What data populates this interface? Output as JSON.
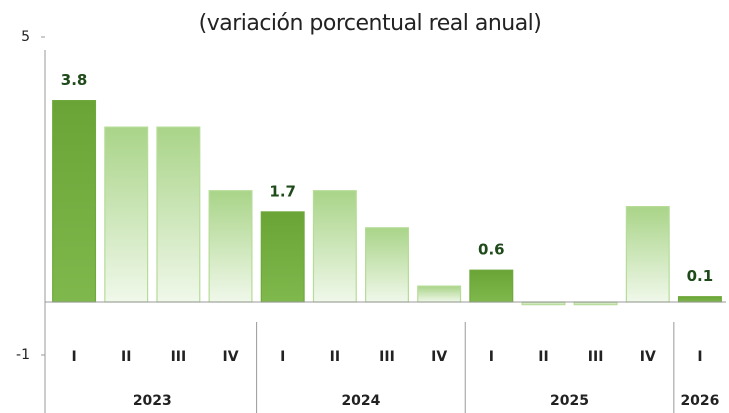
{
  "chart_data": {
    "type": "bar",
    "subtitle": "(variación porcentual real anual)",
    "categories": [
      "I",
      "II",
      "III",
      "IV",
      "I",
      "II",
      "III",
      "IV",
      "I",
      "II",
      "III",
      "IV",
      "I"
    ],
    "groups": [
      {
        "label": "2023",
        "span": 4
      },
      {
        "label": "2024",
        "span": 4
      },
      {
        "label": "2025",
        "span": 4
      },
      {
        "label": "2026",
        "span": 1
      }
    ],
    "values": [
      3.8,
      3.3,
      3.3,
      2.1,
      1.7,
      2.1,
      1.4,
      0.3,
      0.6,
      -0.05,
      -0.05,
      1.8,
      0.1
    ],
    "value_labels": [
      "3.8",
      null,
      null,
      null,
      "1.7",
      null,
      null,
      null,
      "0.6",
      null,
      null,
      null,
      "0.1"
    ],
    "colors": {
      "labelled": "#6fa83c",
      "other": "#b6dc98"
    },
    "ylim": [
      -1,
      5
    ],
    "yticks": [
      -1,
      5
    ]
  }
}
